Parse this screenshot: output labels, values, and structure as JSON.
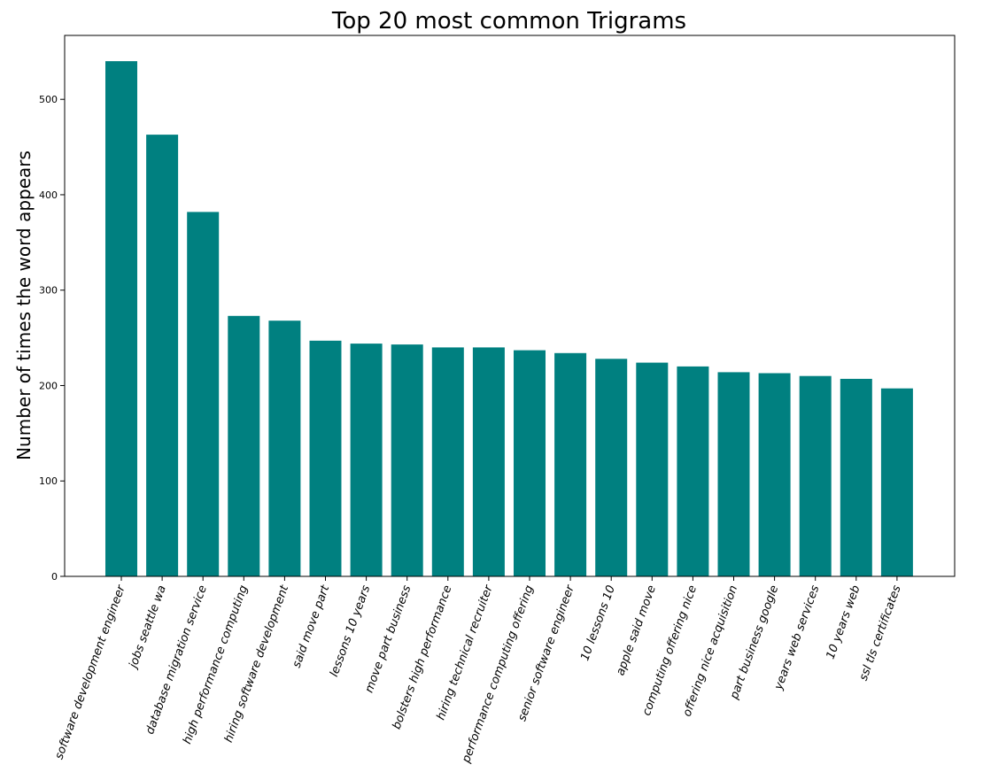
{
  "chart_data": {
    "type": "bar",
    "title": "Top 20 most common Trigrams",
    "xlabel": "",
    "ylabel": "Number of times the word appears",
    "categories": [
      "software development engineer",
      "jobs seattle wa",
      "database migration service",
      "high performance computing",
      "hiring software development",
      "said move part",
      "lessons 10 years",
      "move part business",
      "bolsters high performance",
      "hiring technical recruiter",
      "performance computing offering",
      "senior software engineer",
      "10 lessons 10",
      "apple said move",
      "computing offering nice",
      "offering nice acquisition",
      "part business google",
      "years web services",
      "10 years web",
      "ssl tls certificates"
    ],
    "values": [
      540,
      463,
      382,
      273,
      268,
      247,
      244,
      243,
      240,
      240,
      237,
      234,
      228,
      224,
      220,
      214,
      213,
      210,
      207,
      197
    ],
    "yticks": [
      0,
      100,
      200,
      300,
      400,
      500
    ],
    "ylim": [
      0,
      567
    ],
    "grid": false,
    "bar_color": "#008080"
  }
}
